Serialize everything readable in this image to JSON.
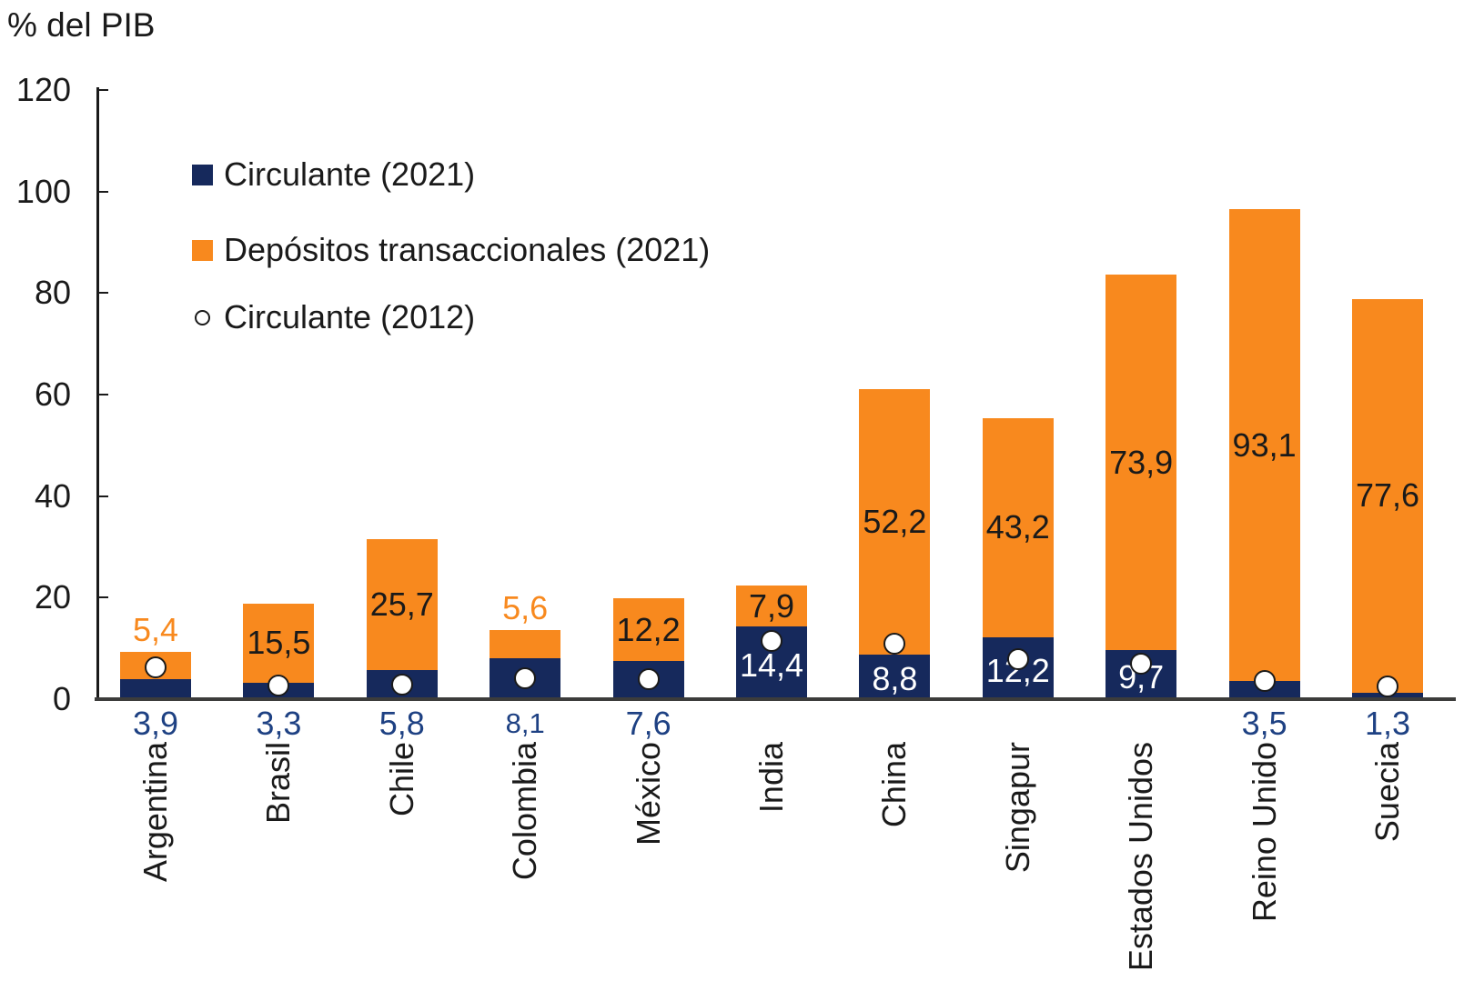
{
  "title": "% del PIB",
  "colors": {
    "navy": "#16295C",
    "orange": "#F8891E",
    "value_navy": "#1E4183",
    "black": "#1A1A1A",
    "white": "#FFFFFF",
    "axis_gray": "#3C3C3B"
  },
  "legend": [
    {
      "label": "Circulante (2021)",
      "marker": "square",
      "color_key": "navy"
    },
    {
      "label": "Depósitos transaccionales (2021)",
      "marker": "square",
      "color_key": "orange"
    },
    {
      "label": "Circulante (2012)",
      "marker": "circle-open",
      "color_key": "white"
    }
  ],
  "chart_data": {
    "type": "bar",
    "subtype": "stacked-bars-with-point-markers",
    "title": "% del PIB",
    "xlabel": "",
    "ylabel": "% del PIB",
    "ylim": [
      0,
      120
    ],
    "ytick_step": 20,
    "yticks": [
      0,
      20,
      40,
      60,
      80,
      100,
      120
    ],
    "ytick_labels": [
      "0",
      "20",
      "40",
      "60",
      "80",
      "100",
      "120"
    ],
    "grid": false,
    "legend_position": "upper-left-inside",
    "series": [
      {
        "name": "Circulante (2021)",
        "style": "bar-navy"
      },
      {
        "name": "Depósitos transaccionales (2021)",
        "style": "bar-orange"
      },
      {
        "name": "Circulante (2012)",
        "style": "open-circle-marker",
        "note": "values estimated from marker positions; not labeled in chart"
      }
    ],
    "countries": [
      {
        "name": "Argentina",
        "slug": "argentina",
        "circulante_2021": 3.9,
        "circulante_2021_label": "3,9",
        "depositos_2021": 5.4,
        "depositos_2021_label": "5,4",
        "circulante_2012": 6.2,
        "blue_label_pos": "below",
        "orange_label_pos": "above",
        "blue_label_small": false
      },
      {
        "name": "Brasil",
        "slug": "brasil",
        "circulante_2021": 3.3,
        "circulante_2021_label": "3,3",
        "depositos_2021": 15.5,
        "depositos_2021_label": "15,5",
        "circulante_2012": 2.6,
        "blue_label_pos": "below",
        "orange_label_pos": "inside",
        "blue_label_small": false
      },
      {
        "name": "Chile",
        "slug": "chile",
        "circulante_2021": 5.8,
        "circulante_2021_label": "5,8",
        "depositos_2021": 25.7,
        "depositos_2021_label": "25,7",
        "circulante_2012": 2.8,
        "blue_label_pos": "below",
        "orange_label_pos": "inside",
        "blue_label_small": false
      },
      {
        "name": "Colombia",
        "slug": "colombia",
        "circulante_2021": 8.1,
        "circulante_2021_label": "8,1",
        "depositos_2021": 5.6,
        "depositos_2021_label": "5,6",
        "circulante_2012": 4.2,
        "blue_label_pos": "below",
        "orange_label_pos": "above",
        "blue_label_small": true
      },
      {
        "name": "México",
        "slug": "mexico",
        "circulante_2021": 7.6,
        "circulante_2021_label": "7,6",
        "depositos_2021": 12.2,
        "depositos_2021_label": "12,2",
        "circulante_2012": 4.0,
        "blue_label_pos": "below",
        "orange_label_pos": "inside",
        "blue_label_small": false
      },
      {
        "name": "India",
        "slug": "india",
        "circulante_2021": 14.4,
        "circulante_2021_label": "14,4",
        "depositos_2021": 7.9,
        "depositos_2021_label": "7,9",
        "circulante_2012": 11.5,
        "blue_label_pos": "inside",
        "orange_label_pos": "inside",
        "blue_label_small": false
      },
      {
        "name": "China",
        "slug": "china",
        "circulante_2021": 8.8,
        "circulante_2021_label": "8,8",
        "depositos_2021": 52.2,
        "depositos_2021_label": "52,2",
        "circulante_2012": 11.0,
        "blue_label_pos": "inside",
        "orange_label_pos": "inside",
        "blue_label_small": false
      },
      {
        "name": "Singapur",
        "slug": "singapur",
        "circulante_2021": 12.2,
        "circulante_2021_label": "12,2",
        "depositos_2021": 43.2,
        "depositos_2021_label": "43,2",
        "circulante_2012": 7.8,
        "blue_label_pos": "inside",
        "orange_label_pos": "inside",
        "blue_label_small": false
      },
      {
        "name": "Estados Unidos",
        "slug": "estados-unidos",
        "circulante_2021": 9.7,
        "circulante_2021_label": "9,7",
        "depositos_2021": 73.9,
        "depositos_2021_label": "73,9",
        "circulante_2012": 7.0,
        "blue_label_pos": "inside",
        "orange_label_pos": "inside",
        "blue_label_small": false
      },
      {
        "name": "Reino Unido",
        "slug": "reino-unido",
        "circulante_2021": 3.5,
        "circulante_2021_label": "3,5",
        "depositos_2021": 93.1,
        "depositos_2021_label": "93,1",
        "circulante_2012": 3.5,
        "blue_label_pos": "below",
        "orange_label_pos": "inside",
        "blue_label_small": false
      },
      {
        "name": "Suecia",
        "slug": "suecia",
        "circulante_2021": 1.3,
        "circulante_2021_label": "1,3",
        "depositos_2021": 77.6,
        "depositos_2021_label": "77,6",
        "circulante_2012": 2.5,
        "blue_label_pos": "below",
        "orange_label_pos": "inside",
        "blue_label_small": false
      }
    ]
  }
}
